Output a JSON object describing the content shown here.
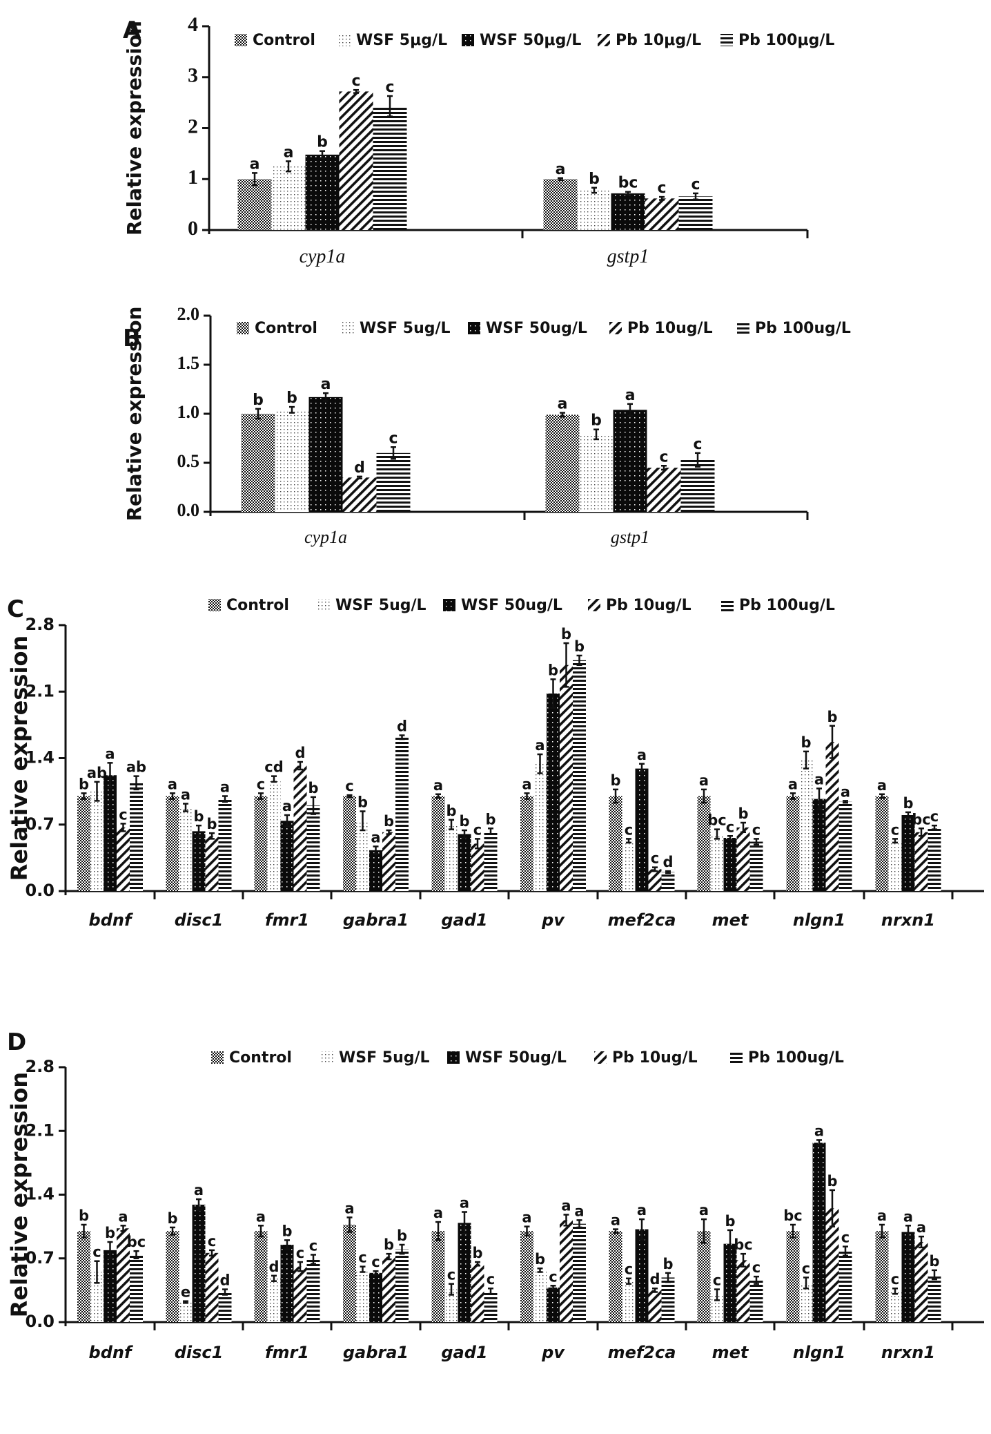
{
  "figure": {
    "series_names": [
      "Control",
      "WSF 5ug/L",
      "WSF 50ug/L",
      "Pb 10ug/L",
      "Pb 100ug/L"
    ],
    "colors": {
      "ink": "#111111",
      "background": "#ffffff"
    }
  },
  "chart_data": [
    {
      "panel": "A",
      "type": "bar",
      "title": "",
      "xlabel": "",
      "ylabel": "Relative expression",
      "ylim": [
        0,
        4
      ],
      "yticks": [
        "0",
        "1",
        "2",
        "3",
        "4"
      ],
      "legend": [
        "Control",
        "WSF 5μg/L",
        "WSF 50μg/L",
        "Pb  10μg/L",
        "Pb  100μg/L"
      ],
      "legend_position": "top",
      "categories": [
        "cyp1a",
        "gstp1"
      ],
      "series": [
        {
          "name": "Control",
          "values": [
            1.0,
            1.0
          ],
          "errors": [
            0.12,
            0.02
          ],
          "labels": [
            "a",
            "a"
          ]
        },
        {
          "name": "WSF 5μg/L",
          "values": [
            1.25,
            0.78
          ],
          "errors": [
            0.1,
            0.05
          ],
          "labels": [
            "a",
            "b"
          ]
        },
        {
          "name": "WSF 50μg/L",
          "values": [
            1.48,
            0.72
          ],
          "errors": [
            0.07,
            0.03
          ],
          "labels": [
            "b",
            "bc"
          ]
        },
        {
          "name": "Pb  10μg/L",
          "values": [
            2.72,
            0.62
          ],
          "errors": [
            0.03,
            0.03
          ],
          "labels": [
            "c",
            "c"
          ]
        },
        {
          "name": "Pb  100μg/L",
          "values": [
            2.43,
            0.66
          ],
          "errors": [
            0.2,
            0.06
          ],
          "labels": [
            "c",
            "c"
          ]
        }
      ]
    },
    {
      "panel": "B",
      "type": "bar",
      "title": "",
      "xlabel": "",
      "ylabel": "Relative expression",
      "ylim": [
        0,
        2.0
      ],
      "yticks": [
        "0.0",
        "0.5",
        "1.0",
        "1.5",
        "2.0"
      ],
      "legend": [
        "Control",
        "WSF 5ug/L",
        "WSF 50ug/L",
        "Pb  10ug/L",
        "Pb  100ug/L"
      ],
      "legend_position": "top",
      "categories": [
        "cyp1a",
        "gstp1"
      ],
      "series": [
        {
          "name": "Control",
          "values": [
            1.0,
            0.99
          ],
          "errors": [
            0.05,
            0.02
          ],
          "labels": [
            "b",
            "a"
          ]
        },
        {
          "name": "WSF 5ug/L",
          "values": [
            1.04,
            0.79
          ],
          "errors": [
            0.03,
            0.05
          ],
          "labels": [
            "b",
            "b"
          ]
        },
        {
          "name": "WSF 50ug/L",
          "values": [
            1.17,
            1.04
          ],
          "errors": [
            0.04,
            0.06
          ],
          "labels": [
            "a",
            "a"
          ]
        },
        {
          "name": "Pb  10ug/L",
          "values": [
            0.35,
            0.45
          ],
          "errors": [
            0.01,
            0.02
          ],
          "labels": [
            "d",
            "c"
          ]
        },
        {
          "name": "Pb  100ug/L",
          "values": [
            0.6,
            0.53
          ],
          "errors": [
            0.06,
            0.07
          ],
          "labels": [
            "c",
            "c"
          ]
        }
      ]
    },
    {
      "panel": "C",
      "type": "bar",
      "title": "",
      "xlabel": "",
      "ylabel": "Relative expression",
      "ylim": [
        0,
        2.8
      ],
      "yticks": [
        "0.0",
        "0.7",
        "1.4",
        "2.1",
        "2.8"
      ],
      "legend": [
        "Control",
        "WSF 5ug/L",
        "WSF 50ug/L",
        "Pb  10ug/L",
        "Pb  100ug/L"
      ],
      "legend_position": "top",
      "categories": [
        "bdnf",
        "disc1",
        "fmr1",
        "gabra1",
        "gad1",
        "pv",
        "mef2ca",
        "met",
        "nlgn1",
        "nrxn1"
      ],
      "series": [
        {
          "name": "Control",
          "values": [
            1.0,
            1.0,
            1.0,
            1.0,
            1.0,
            1.0,
            1.0,
            1.0,
            1.0,
            1.0
          ],
          "errors": [
            0.03,
            0.03,
            0.03,
            0.01,
            0.02,
            0.03,
            0.07,
            0.07,
            0.03,
            0.02
          ],
          "labels": [
            "b",
            "a",
            "c",
            "c",
            "a",
            "a",
            "b",
            "a",
            "a",
            "a"
          ]
        },
        {
          "name": "WSF 5ug/L",
          "values": [
            1.05,
            0.88,
            1.18,
            0.74,
            0.7,
            1.34,
            0.53,
            0.6,
            1.38,
            0.53
          ],
          "errors": [
            0.1,
            0.04,
            0.03,
            0.1,
            0.05,
            0.1,
            0.02,
            0.05,
            0.09,
            0.02
          ],
          "labels": [
            "ab",
            "a",
            "cd",
            "b",
            "b",
            "a",
            "c",
            "bc",
            "b",
            "c"
          ]
        },
        {
          "name": "WSF 50ug/L",
          "values": [
            1.22,
            0.63,
            0.74,
            0.43,
            0.6,
            2.08,
            1.29,
            0.56,
            0.97,
            0.8
          ],
          "errors": [
            0.13,
            0.06,
            0.06,
            0.04,
            0.04,
            0.15,
            0.05,
            0.02,
            0.11,
            0.03
          ],
          "labels": [
            "a",
            "b",
            "a",
            "a",
            "b",
            "b",
            "a",
            "c",
            "a",
            "b"
          ]
        },
        {
          "name": "Pb  10ug/L",
          "values": [
            0.67,
            0.58,
            1.32,
            0.62,
            0.5,
            2.38,
            0.23,
            0.67,
            1.57,
            0.62
          ],
          "errors": [
            0.04,
            0.03,
            0.04,
            0.02,
            0.05,
            0.23,
            0.02,
            0.05,
            0.17,
            0.04
          ],
          "labels": [
            "c",
            "b",
            "d",
            "b",
            "c",
            "b",
            "c",
            "b",
            "b",
            "bc"
          ]
        },
        {
          "name": "Pb  100ug/L",
          "values": [
            1.14,
            0.97,
            0.9,
            1.62,
            0.63,
            2.43,
            0.2,
            0.52,
            0.94,
            0.67
          ],
          "errors": [
            0.07,
            0.03,
            0.09,
            0.02,
            0.03,
            0.05,
            0.01,
            0.03,
            0.01,
            0.02
          ],
          "labels": [
            "ab",
            "a",
            "b",
            "d",
            "b",
            "b",
            "d",
            "c",
            "a",
            "c"
          ]
        }
      ]
    },
    {
      "panel": "D",
      "type": "bar",
      "title": "",
      "xlabel": "",
      "ylabel": "Relative expression",
      "ylim": [
        0,
        2.8
      ],
      "yticks": [
        "0.0",
        "0.7",
        "1.4",
        "2.1",
        "2.8"
      ],
      "legend": [
        "Control",
        "WSF 5ug/L",
        "WSF 50ug/L",
        "Pb  10ug/L",
        "Pb  100ug/L"
      ],
      "legend_position": "top",
      "categories": [
        "bdnf",
        "disc1",
        "fmr1",
        "gabra1",
        "gad1",
        "pv",
        "mef2ca",
        "met",
        "nlgn1",
        "nrxn1"
      ],
      "series": [
        {
          "name": "Control",
          "values": [
            1.0,
            1.0,
            1.0,
            1.07,
            1.0,
            1.0,
            1.0,
            1.0,
            1.0,
            1.0
          ],
          "errors": [
            0.07,
            0.04,
            0.06,
            0.08,
            0.1,
            0.05,
            0.02,
            0.13,
            0.07,
            0.07
          ],
          "labels": [
            "b",
            "b",
            "a",
            "a",
            "a",
            "a",
            "a",
            "a",
            "bc",
            "a"
          ]
        },
        {
          "name": "WSF 5ug/L",
          "values": [
            0.55,
            0.22,
            0.48,
            0.58,
            0.36,
            0.57,
            0.45,
            0.3,
            0.43,
            0.34
          ],
          "errors": [
            0.12,
            0.01,
            0.03,
            0.03,
            0.06,
            0.02,
            0.03,
            0.06,
            0.06,
            0.03
          ],
          "labels": [
            "c",
            "e",
            "d",
            "c",
            "c",
            "b",
            "c",
            "c",
            "c",
            "c"
          ]
        },
        {
          "name": "WSF 50ug/L",
          "values": [
            0.79,
            1.29,
            0.85,
            0.54,
            1.09,
            0.38,
            1.02,
            0.86,
            1.97,
            0.99
          ],
          "errors": [
            0.09,
            0.06,
            0.05,
            0.02,
            0.12,
            0.02,
            0.11,
            0.15,
            0.03,
            0.07
          ],
          "labels": [
            "b",
            "a",
            "b",
            "c",
            "a",
            "c",
            "a",
            "b",
            "a",
            "a"
          ]
        },
        {
          "name": "Pb  10ug/L",
          "values": [
            1.03,
            0.76,
            0.61,
            0.72,
            0.64,
            1.12,
            0.35,
            0.68,
            1.25,
            0.88
          ],
          "errors": [
            0.03,
            0.03,
            0.05,
            0.03,
            0.02,
            0.06,
            0.02,
            0.07,
            0.2,
            0.06
          ],
          "labels": [
            "a",
            "c",
            "c",
            "b",
            "b",
            "a",
            "d",
            "bc",
            "b",
            "a"
          ]
        },
        {
          "name": "Pb  100ug/L",
          "values": [
            0.74,
            0.33,
            0.69,
            0.8,
            0.34,
            1.08,
            0.49,
            0.46,
            0.78,
            0.52
          ],
          "errors": [
            0.04,
            0.03,
            0.05,
            0.05,
            0.03,
            0.04,
            0.05,
            0.04,
            0.05,
            0.05
          ],
          "labels": [
            "bc",
            "d",
            "c",
            "b",
            "c",
            "a",
            "b",
            "c",
            "c",
            "b"
          ]
        }
      ]
    }
  ]
}
